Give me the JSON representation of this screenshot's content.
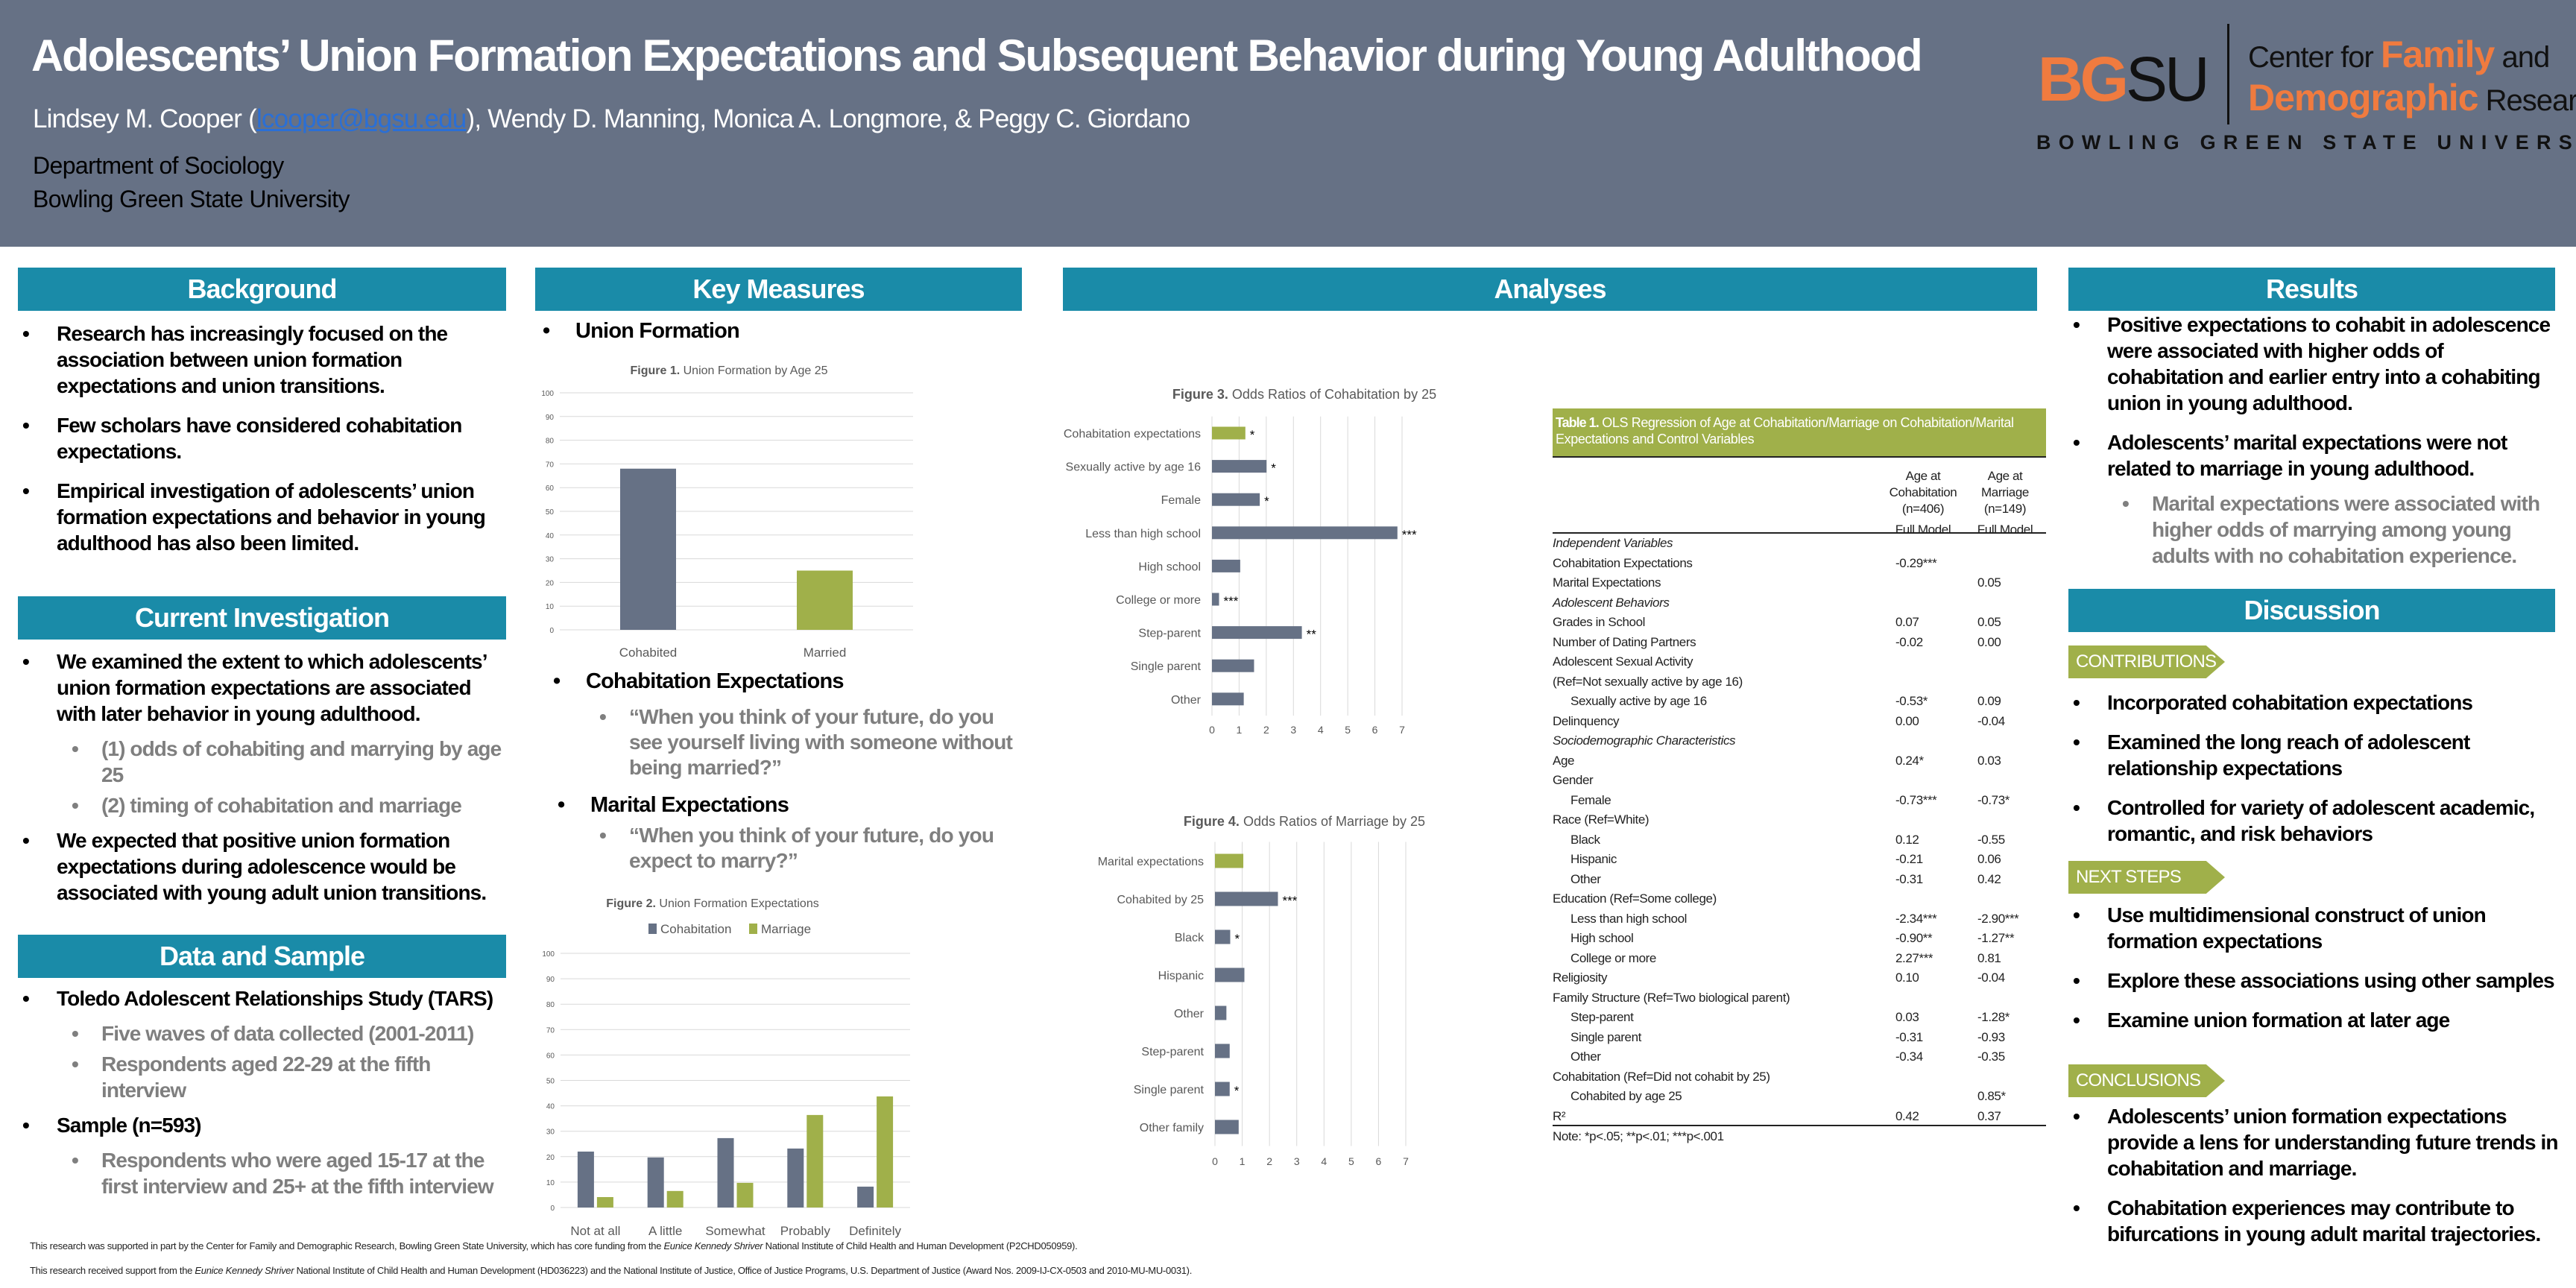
{
  "header": {
    "title": "Adolescents’ Union Formation Expectations and Subsequent Behavior during Young Adulthood",
    "author_first": "Lindsey M. Cooper (",
    "email": "lcooper@bgsu.edu",
    "authors_rest": "), Wendy D. Manning, Monica A. Longmore, & Peggy C. Giordano",
    "department": "Department of Sociology",
    "university": "Bowling Green State University"
  },
  "logo": {
    "bg": "BG",
    "su": "SU",
    "center_for": "Center for ",
    "family": "Family",
    "and": " and",
    "demographic": "Demographic",
    "research": " Research",
    "full_name": "BOWLING GREEN STATE UNIVERSITY"
  },
  "colors": {
    "header_bg": "#667185",
    "section_head": "#1a8ba8",
    "accent_green": "#a0b04a",
    "accent_orange": "#f07b3f"
  },
  "background": {
    "heading": "Background",
    "items": [
      {
        "text": "Research has increasingly focused on the association between union formation expectations and union transitions.",
        "level": 1
      },
      {
        "text": "Few scholars have considered cohabitation expectations.",
        "level": 1
      },
      {
        "text": "Empirical investigation of adolescents’ union formation expectations and behavior in young adulthood has also been limited.",
        "level": 1
      }
    ]
  },
  "current_investigation": {
    "heading": "Current Investigation",
    "items": [
      {
        "text": "We examined the extent to which adolescents’ union formation expectations are associated with later behavior in young adulthood.",
        "level": 1
      },
      {
        "text": "(1) odds of cohabiting and marrying by age 25",
        "level": 2
      },
      {
        "text": "(2) timing of cohabitation and marriage",
        "level": 2
      },
      {
        "text": "We expected that positive union formation expectations during adolescence would be associated with young adult union transitions.",
        "level": 1
      }
    ]
  },
  "data_sample": {
    "heading": "Data and Sample",
    "items": [
      {
        "text": "Toledo Adolescent Relationships Study (TARS)",
        "level": 1
      },
      {
        "text": "Five waves of data collected (2001-2011)",
        "level": 2
      },
      {
        "text": "Respondents aged 22-29 at the fifth interview",
        "level": 2
      },
      {
        "text": "Sample (n=593)",
        "level": 1
      },
      {
        "text": "Respondents who were aged 15-17 at the first interview and 25+ at the fifth interview",
        "level": 2
      }
    ]
  },
  "key_measures": {
    "heading": "Key Measures",
    "union_formation": "Union Formation",
    "cohab_expectations": "Cohabitation Expectations",
    "cohab_question": "“When you think of your future, do you see yourself living with someone without being married?”",
    "marital_expectations": "Marital Expectations",
    "marital_question": "“When you think of your future, do you expect to marry?”"
  },
  "analyses": {
    "heading": "Analyses"
  },
  "results": {
    "heading": "Results",
    "items": [
      {
        "text": "Positive expectations to cohabit in adolescence were associated with higher odds of cohabitation and earlier entry into a cohabiting union in young adulthood.",
        "level": 1
      },
      {
        "text": "Adolescents’ marital expectations were not related to marriage in young adulthood.",
        "level": 1
      },
      {
        "text": "Marital expectations were associated with higher odds of marrying among young adults with no cohabitation experience.",
        "level": 2
      }
    ]
  },
  "discussion": {
    "heading": "Discussion",
    "contributions_tag": "CONTRIBUTIONS",
    "contributions": [
      {
        "text": "Incorporated cohabitation expectations",
        "level": 1
      },
      {
        "text": "Examined the long reach of adolescent relationship expectations",
        "level": 1
      },
      {
        "text": "Controlled for variety of adolescent academic, romantic, and risk behaviors",
        "level": 1
      }
    ],
    "next_steps_tag": "NEXT STEPS",
    "next_steps": [
      {
        "text": "Use multidimensional construct of union formation expectations",
        "level": 1
      },
      {
        "text": "Explore these associations using other samples",
        "level": 1
      },
      {
        "text": "Examine union formation at later age",
        "level": 1
      }
    ],
    "conclusions_tag": "CONCLUSIONS",
    "conclusions": [
      {
        "text": "Adolescents’ union formation expectations provide a lens for understanding future trends in cohabitation and marriage.",
        "level": 1
      },
      {
        "text": "Cohabitation experiences may contribute to bifurcations in young adult marital trajectories.",
        "level": 1
      }
    ]
  },
  "table": {
    "title_bold": "Table 1.",
    "title": " OLS Regression of Age at Cohabitation/Marriage on Cohabitation/Marital Expectations and Control Variables",
    "col1_head": [
      "Age at",
      "Cohabitation",
      "(n=406)",
      "Full Model"
    ],
    "col2_head": [
      "Age at",
      "Marriage",
      "(n=149)",
      "Full Model"
    ],
    "rows": [
      {
        "label": "Independent Variables",
        "style": "italic",
        "c1": "",
        "c2": ""
      },
      {
        "label": "Cohabitation Expectations",
        "c1": "-0.29***",
        "c2": ""
      },
      {
        "label": "Marital Expectations",
        "c1": "",
        "c2": "0.05"
      },
      {
        "label": "Adolescent Behaviors",
        "style": "italic",
        "c1": "",
        "c2": ""
      },
      {
        "label": "Grades in School",
        "c1": "0.07",
        "c2": "0.05"
      },
      {
        "label": "Number of Dating Partners",
        "c1": "-0.02",
        "c2": "0.00"
      },
      {
        "label": "Adolescent Sexual Activity",
        "c1": "",
        "c2": ""
      },
      {
        "label": " (Ref=Not sexually active by age 16)",
        "c1": "",
        "c2": ""
      },
      {
        "label": "Sexually active by age 16",
        "indent": true,
        "c1": "-0.53*",
        "c2": "0.09"
      },
      {
        "label": "Delinquency",
        "c1": "0.00",
        "c2": "-0.04"
      },
      {
        "label": "Sociodemographic Characteristics",
        "style": "italic",
        "c1": "",
        "c2": ""
      },
      {
        "label": "Age",
        "c1": "0.24*",
        "c2": "0.03"
      },
      {
        "label": "Gender",
        "c1": "",
        "c2": ""
      },
      {
        "label": "Female",
        "indent": true,
        "c1": "-0.73***",
        "c2": "-0.73*"
      },
      {
        "label": "Race (Ref=White)",
        "c1": "",
        "c2": ""
      },
      {
        "label": "Black",
        "indent": true,
        "c1": "0.12",
        "c2": "-0.55"
      },
      {
        "label": "Hispanic",
        "indent": true,
        "c1": "-0.21",
        "c2": "0.06"
      },
      {
        "label": "Other",
        "indent": true,
        "c1": "-0.31",
        "c2": "0.42"
      },
      {
        "label": "Education (Ref=Some college)",
        "c1": "",
        "c2": ""
      },
      {
        "label": "Less than high school",
        "indent": true,
        "c1": "-2.34***",
        "c2": "-2.90***"
      },
      {
        "label": "High school",
        "indent": true,
        "c1": "-0.90**",
        "c2": "-1.27**"
      },
      {
        "label": "College or more",
        "indent": true,
        "c1": "2.27***",
        "c2": "0.81"
      },
      {
        "label": "Religiosity",
        "c1": "0.10",
        "c2": "-0.04"
      },
      {
        "label": "Family Structure (Ref=Two biological parent)",
        "c1": "",
        "c2": ""
      },
      {
        "label": "Step-parent",
        "indent": true,
        "c1": "0.03",
        "c2": "-1.28*"
      },
      {
        "label": "Single parent",
        "indent": true,
        "c1": "-0.31",
        "c2": "-0.93"
      },
      {
        "label": "Other",
        "indent": true,
        "c1": "-0.34",
        "c2": "-0.35"
      },
      {
        "label": "Cohabitation (Ref=Did not cohabit by 25)",
        "c1": "",
        "c2": ""
      },
      {
        "label": "Cohabited by age 25",
        "indent": true,
        "c1": "",
        "c2": "0.85*"
      },
      {
        "label": "R²",
        "c1": "0.42",
        "c2": "0.37"
      }
    ],
    "note": "Note: *p<.05; **p<.01; ***p<.001"
  },
  "footer": [
    {
      "pre": "This research was supported in part by the Center for Family and Demographic Research, Bowling Green State University, which has core funding from the ",
      "italic": "Eunice Kennedy Shriver",
      "post": " National Institute of Child Health and Human Development (P2CHD050959)."
    },
    {
      "pre": "This research received support from the ",
      "italic": "Eunice Kennedy Shriver",
      "post": " National Institute of Child Health and Human Development (HD036223) and the National Institute of Justice, Office of Justice Programs, U.S. Department of Justice (Award Nos. 2009-IJ-CX-0503 and 2010-MU-MU-0031)."
    }
  ],
  "chart_data": [
    {
      "type": "bar",
      "orientation": "vertical",
      "title_prefix": "Figure 1.",
      "title": " Union Formation by Age 25",
      "categories": [
        "Cohabited",
        "Married"
      ],
      "values": [
        68,
        25
      ],
      "bar_colors": [
        "#667185",
        "#a0b04a"
      ],
      "ylim": [
        0,
        100
      ],
      "yticks": [
        0,
        10,
        20,
        30,
        40,
        50,
        60,
        70,
        80,
        90,
        100
      ],
      "grid": true
    },
    {
      "type": "bar",
      "orientation": "vertical",
      "title_prefix": "Figure 2.",
      "title": " Union Formation Expectations",
      "categories": [
        "Not at all",
        "A little",
        "Somewhat",
        "Probably",
        "Definitely"
      ],
      "series": [
        {
          "name": "Cohabitation",
          "color": "#667185",
          "values": [
            22,
            19.7,
            27.3,
            23.2,
            8.2
          ]
        },
        {
          "name": "Marriage",
          "color": "#a0b04a",
          "values": [
            4.1,
            6.5,
            9.7,
            36.4,
            43.7
          ]
        }
      ],
      "legend": "top",
      "ylim": [
        0,
        100
      ],
      "yticks": [
        0,
        10,
        20,
        30,
        40,
        50,
        60,
        70,
        80,
        90,
        100
      ],
      "grid": true
    },
    {
      "type": "bar",
      "orientation": "horizontal",
      "title_prefix": "Figure 3.",
      "title": " Odds Ratios of Cohabitation by 25",
      "categories": [
        "Cohabitation expectations",
        "Sexually active by age 16",
        "Female",
        "Less than high school",
        "High school",
        "College or more",
        "Step-parent",
        "Single parent",
        "Other"
      ],
      "values": [
        1.23,
        2.01,
        1.76,
        6.83,
        1.04,
        0.26,
        3.31,
        1.55,
        1.17
      ],
      "significance": [
        "*",
        "*",
        "*",
        "***",
        "",
        "***",
        "**",
        "",
        ""
      ],
      "highlight_index": 0,
      "colors": {
        "primary": "#667185",
        "highlight": "#a0b04a"
      },
      "xlim": [
        0,
        7
      ],
      "xticks": [
        0,
        1,
        2,
        3,
        4,
        5,
        6,
        7
      ],
      "grid": true
    },
    {
      "type": "bar",
      "orientation": "horizontal",
      "title_prefix": "Figure 4.",
      "title": " Odds Ratios of Marriage by 25",
      "categories": [
        "Marital expectations",
        "Cohabited by 25",
        "Black",
        "Hispanic",
        "Other",
        "Step-parent",
        "Single parent",
        "Other family"
      ],
      "values": [
        1.04,
        2.31,
        0.56,
        1.08,
        0.42,
        0.54,
        0.54,
        0.87
      ],
      "significance": [
        "",
        "***",
        "*",
        "",
        "",
        "",
        "*",
        ""
      ],
      "highlight_index": 0,
      "colors": {
        "primary": "#667185",
        "highlight": "#a0b04a"
      },
      "xlim": [
        0,
        7
      ],
      "xticks": [
        0,
        1,
        2,
        3,
        4,
        5,
        6,
        7
      ],
      "grid": true
    }
  ]
}
